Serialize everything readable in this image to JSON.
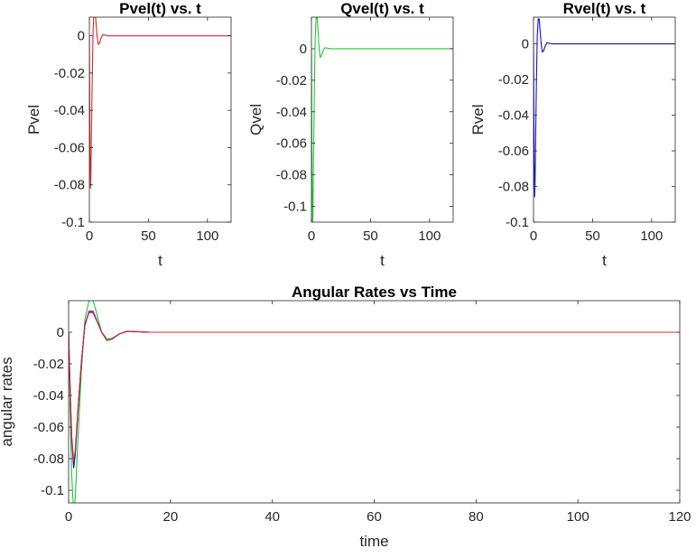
{
  "colors": {
    "pvel": "#d62728",
    "qvel": "#22c83a",
    "rvel": "#1010d0",
    "purple": "#8a2be2",
    "axis": "#262626",
    "background": "#ffffff"
  },
  "chart_data": [
    {
      "type": "line",
      "title": "Pvel(t) vs. t",
      "xlabel": "t",
      "ylabel": "Pvel",
      "xlim": [
        0,
        120
      ],
      "ylim": [
        -0.1,
        0.01
      ],
      "xticks": [
        0,
        50,
        100
      ],
      "xtick_labels": [
        "0",
        "50",
        "100"
      ],
      "yticks": [
        -0.1,
        -0.08,
        -0.06,
        -0.04,
        -0.02,
        0
      ],
      "ytick_labels": [
        "-0.1",
        "-0.08",
        "-0.06",
        "-0.04",
        "-0.02",
        "0"
      ],
      "grid": false,
      "series": [
        {
          "color": "#d62728",
          "x": [
            0,
            0.5,
            1,
            1.3,
            1.8,
            2.5,
            3.2,
            4,
            4.8,
            5.5,
            6.5,
            7.5,
            8.5,
            10,
            11.5,
            13,
            16,
            20,
            30,
            60,
            120
          ],
          "y": [
            0,
            -0.06,
            -0.082,
            -0.075,
            -0.05,
            -0.02,
            0.004,
            0.014,
            0.014,
            0.008,
            0.0,
            -0.0045,
            -0.004,
            -0.001,
            0.0006,
            0.0004,
            0,
            0,
            0,
            0,
            0
          ]
        }
      ]
    },
    {
      "type": "line",
      "title": "Qvel(t) vs. t",
      "xlabel": "t",
      "ylabel": "Qvel",
      "xlim": [
        0,
        120
      ],
      "ylim": [
        -0.11,
        0.02
      ],
      "xticks": [
        0,
        50,
        100
      ],
      "xtick_labels": [
        "0",
        "50",
        "100"
      ],
      "yticks": [
        -0.1,
        -0.08,
        -0.06,
        -0.04,
        -0.02,
        0
      ],
      "ytick_labels": [
        "-0.1",
        "-0.08",
        "-0.06",
        "-0.04",
        "-0.02",
        "0"
      ],
      "grid": false,
      "series": [
        {
          "color": "#22c83a",
          "x": [
            0,
            0.5,
            1,
            1.3,
            1.8,
            2.5,
            3.2,
            4,
            4.8,
            5.5,
            6.5,
            7.5,
            8.5,
            10,
            11.5,
            13,
            16,
            20,
            30,
            60,
            120
          ],
          "y": [
            0,
            -0.08,
            -0.115,
            -0.105,
            -0.07,
            -0.025,
            0.008,
            0.02,
            0.02,
            0.012,
            0.0,
            -0.0055,
            -0.0045,
            -0.001,
            0.0007,
            0.0004,
            0,
            0,
            0,
            0,
            0
          ]
        }
      ]
    },
    {
      "type": "line",
      "title": "Rvel(t) vs. t",
      "xlabel": "t",
      "ylabel": "Rvel",
      "xlim": [
        0,
        120
      ],
      "ylim": [
        -0.1,
        0.015
      ],
      "xticks": [
        0,
        50,
        100
      ],
      "xtick_labels": [
        "0",
        "50",
        "100"
      ],
      "yticks": [
        -0.1,
        -0.08,
        -0.06,
        -0.04,
        -0.02,
        0
      ],
      "ytick_labels": [
        "-0.1",
        "-0.08",
        "-0.06",
        "-0.04",
        "-0.02",
        "0"
      ],
      "grid": false,
      "series": [
        {
          "color": "#1010d0",
          "x": [
            0,
            0.5,
            1,
            1.3,
            1.8,
            2.5,
            3.2,
            4,
            4.8,
            5.5,
            6.5,
            7.5,
            8.5,
            10,
            11.5,
            13,
            16,
            20,
            30,
            60,
            120
          ],
          "y": [
            0,
            -0.065,
            -0.086,
            -0.078,
            -0.052,
            -0.02,
            0.005,
            0.014,
            0.014,
            0.008,
            0.0,
            -0.0045,
            -0.004,
            -0.001,
            0.0006,
            0.0004,
            0,
            0,
            0,
            0,
            0
          ]
        }
      ]
    },
    {
      "type": "line",
      "title": "Angular Rates vs Time",
      "xlabel": "time",
      "ylabel": "angular rates",
      "xlim": [
        0,
        120
      ],
      "ylim": [
        -0.108,
        0.02
      ],
      "xticks": [
        0,
        20,
        40,
        60,
        80,
        100,
        120
      ],
      "xtick_labels": [
        "0",
        "20",
        "40",
        "60",
        "80",
        "100",
        "120"
      ],
      "yticks": [
        -0.1,
        -0.08,
        -0.06,
        -0.04,
        -0.02,
        0
      ],
      "ytick_labels": [
        "-0.1",
        "-0.08",
        "-0.06",
        "-0.04",
        "-0.02",
        "0"
      ],
      "grid": false,
      "series": [
        {
          "color": "#22c83a",
          "x": [
            0,
            0.3,
            0.6,
            1,
            1.3,
            1.8,
            2.5,
            3.2,
            4,
            4.8,
            5.5,
            6.5,
            7.5,
            8.5,
            10,
            11.5,
            13,
            16,
            20,
            30,
            60,
            120
          ],
          "y": [
            0,
            -0.05,
            -0.09,
            -0.115,
            -0.105,
            -0.07,
            -0.025,
            0.008,
            0.02,
            0.02,
            0.012,
            0.0,
            -0.0055,
            -0.0045,
            -0.001,
            0.0007,
            0.0004,
            0,
            0,
            0,
            0,
            0
          ]
        },
        {
          "color": "#8a2be2",
          "x": [
            0,
            0.3,
            0.6,
            1,
            1.3,
            1.8,
            2.5,
            3.2,
            4,
            4.8,
            5.5,
            6.5,
            7.5,
            8.5,
            10,
            11.5,
            13,
            16,
            20,
            30,
            60,
            120
          ],
          "y": [
            0,
            -0.035,
            -0.065,
            -0.084,
            -0.077,
            -0.051,
            -0.019,
            0.0045,
            0.0135,
            0.0135,
            0.008,
            0.0,
            -0.0045,
            -0.004,
            -0.001,
            0.0006,
            0.0004,
            0,
            0,
            0,
            0,
            0
          ]
        },
        {
          "color": "#1010d0",
          "x": [
            0,
            0.3,
            0.6,
            1,
            1.3,
            1.8,
            2.5,
            3.2,
            4,
            4.8,
            5.5,
            6.5,
            7.5,
            8.5,
            10,
            11.5,
            13,
            16,
            20,
            30,
            60,
            120
          ],
          "y": [
            0,
            -0.037,
            -0.068,
            -0.086,
            -0.078,
            -0.052,
            -0.02,
            0.005,
            0.0125,
            0.0125,
            0.0075,
            0.0,
            -0.0045,
            -0.004,
            -0.001,
            0.0006,
            0.0004,
            0,
            0,
            0,
            0,
            0
          ]
        },
        {
          "color": "#d62728",
          "x": [
            0,
            0.3,
            0.6,
            1,
            1.3,
            1.8,
            2.5,
            3.2,
            4,
            4.8,
            5.5,
            6.5,
            7.5,
            8.5,
            10,
            11.5,
            13,
            16,
            20,
            30,
            60,
            120
          ],
          "y": [
            0,
            -0.036,
            -0.066,
            -0.082,
            -0.075,
            -0.05,
            -0.019,
            0.004,
            0.013,
            0.013,
            0.0075,
            0.0,
            -0.0045,
            -0.004,
            -0.001,
            0.0006,
            0.0004,
            0,
            0,
            0,
            0,
            0
          ]
        }
      ]
    }
  ]
}
